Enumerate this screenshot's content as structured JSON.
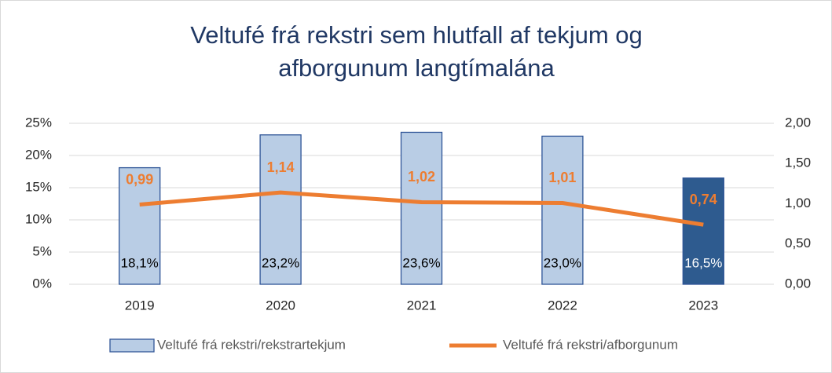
{
  "chart_data": {
    "type": "bar+line",
    "title": "Veltufé frá rekstri sem hlutfall af tekjum og afborgunum langtímalána",
    "categories": [
      "2019",
      "2020",
      "2021",
      "2022",
      "2023"
    ],
    "series": [
      {
        "name": "Veltufé frá rekstri/rekstrartekjum",
        "type": "bar",
        "color": "#b9cde5",
        "edge_color": "#2f5597",
        "colors": [
          "#b9cde5",
          "#b9cde5",
          "#b9cde5",
          "#b9cde5",
          "#2e5b8f"
        ],
        "values": [
          18.1,
          23.2,
          23.6,
          23.0,
          16.5
        ],
        "value_labels": [
          "18,1%",
          "23,2%",
          "23,6%",
          "23,0%",
          "16,5%"
        ]
      },
      {
        "name": "Veltufé frá rekstri/afborgunum",
        "type": "line",
        "axis": "y2",
        "color": "#ed7d31",
        "values": [
          0.99,
          1.14,
          1.02,
          1.01,
          0.74
        ],
        "value_labels": [
          "0,99",
          "1,14",
          "1,02",
          "1,01",
          "0,74"
        ]
      }
    ],
    "ylim": [
      0,
      25
    ],
    "yticks": [
      {
        "value": 0,
        "label": "0%"
      },
      {
        "value": 5,
        "label": "5%"
      },
      {
        "value": 10,
        "label": "10%"
      },
      {
        "value": 15,
        "label": "15%"
      },
      {
        "value": 20,
        "label": "20%"
      },
      {
        "value": 25,
        "label": "25%"
      }
    ],
    "y2lim": [
      0,
      2
    ],
    "y2ticks": [
      {
        "value": 0,
        "label": "0,00"
      },
      {
        "value": 0.5,
        "label": "0,50"
      },
      {
        "value": 1,
        "label": "1,00"
      },
      {
        "value": 1.5,
        "label": "1,50"
      },
      {
        "value": 2,
        "label": "2,00"
      }
    ],
    "grid": true,
    "legend": "bottom"
  }
}
